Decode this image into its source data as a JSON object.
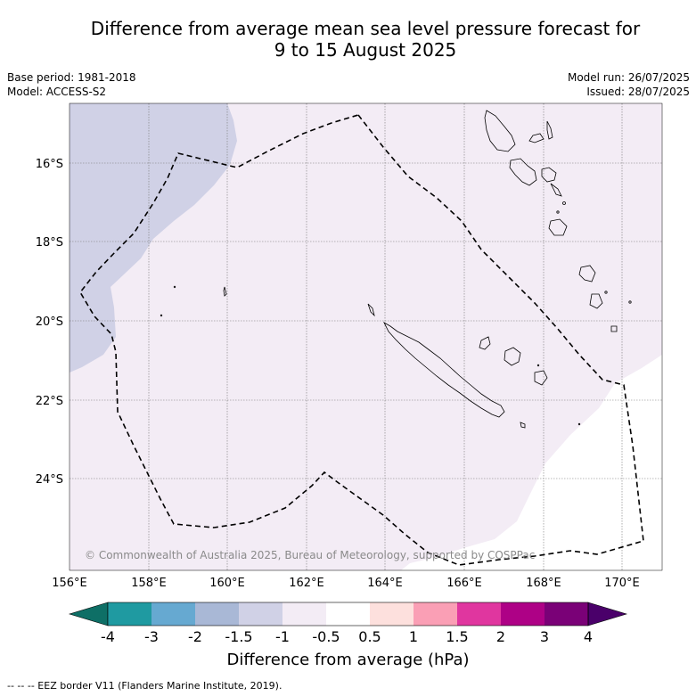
{
  "title_line1": "Difference from average mean sea level pressure forecast for",
  "title_line2": "9 to 15 August 2025",
  "base_period": "Base period: 1981-2018",
  "model": "Model: ACCESS-S2",
  "model_run": "Model run: 26/07/2025",
  "issued": "Issued: 28/07/2025",
  "lat_labels": [
    "16°S",
    "18°S",
    "20°S",
    "22°S",
    "24°S"
  ],
  "lon_labels": [
    "156°E",
    "158°E",
    "160°E",
    "162°E",
    "164°E",
    "166°E",
    "168°E",
    "170°E"
  ],
  "credit": "© Commonwealth of Australia 2025, Bureau of Meteorology, supported by COSPPac",
  "colorbar": {
    "ticks": [
      "-4",
      "-3",
      "-2",
      "-1.5",
      "-1",
      "-0.5",
      "0.5",
      "1",
      "1.5",
      "2",
      "3",
      "4"
    ],
    "colors": [
      "#0e6f66",
      "#1f9aa1",
      "#66a9d1",
      "#a9b8d6",
      "#d0d1e6",
      "#f3ecf5",
      "#ffffff",
      "#fde0dd",
      "#fa9fb5",
      "#e0369f",
      "#ae0186",
      "#7a0177",
      "#4a006a"
    ],
    "title": "Difference from average (hPa)"
  },
  "footer": "--  --  -- EEZ border V11 (Flanders Marine Institute, 2019)."
}
